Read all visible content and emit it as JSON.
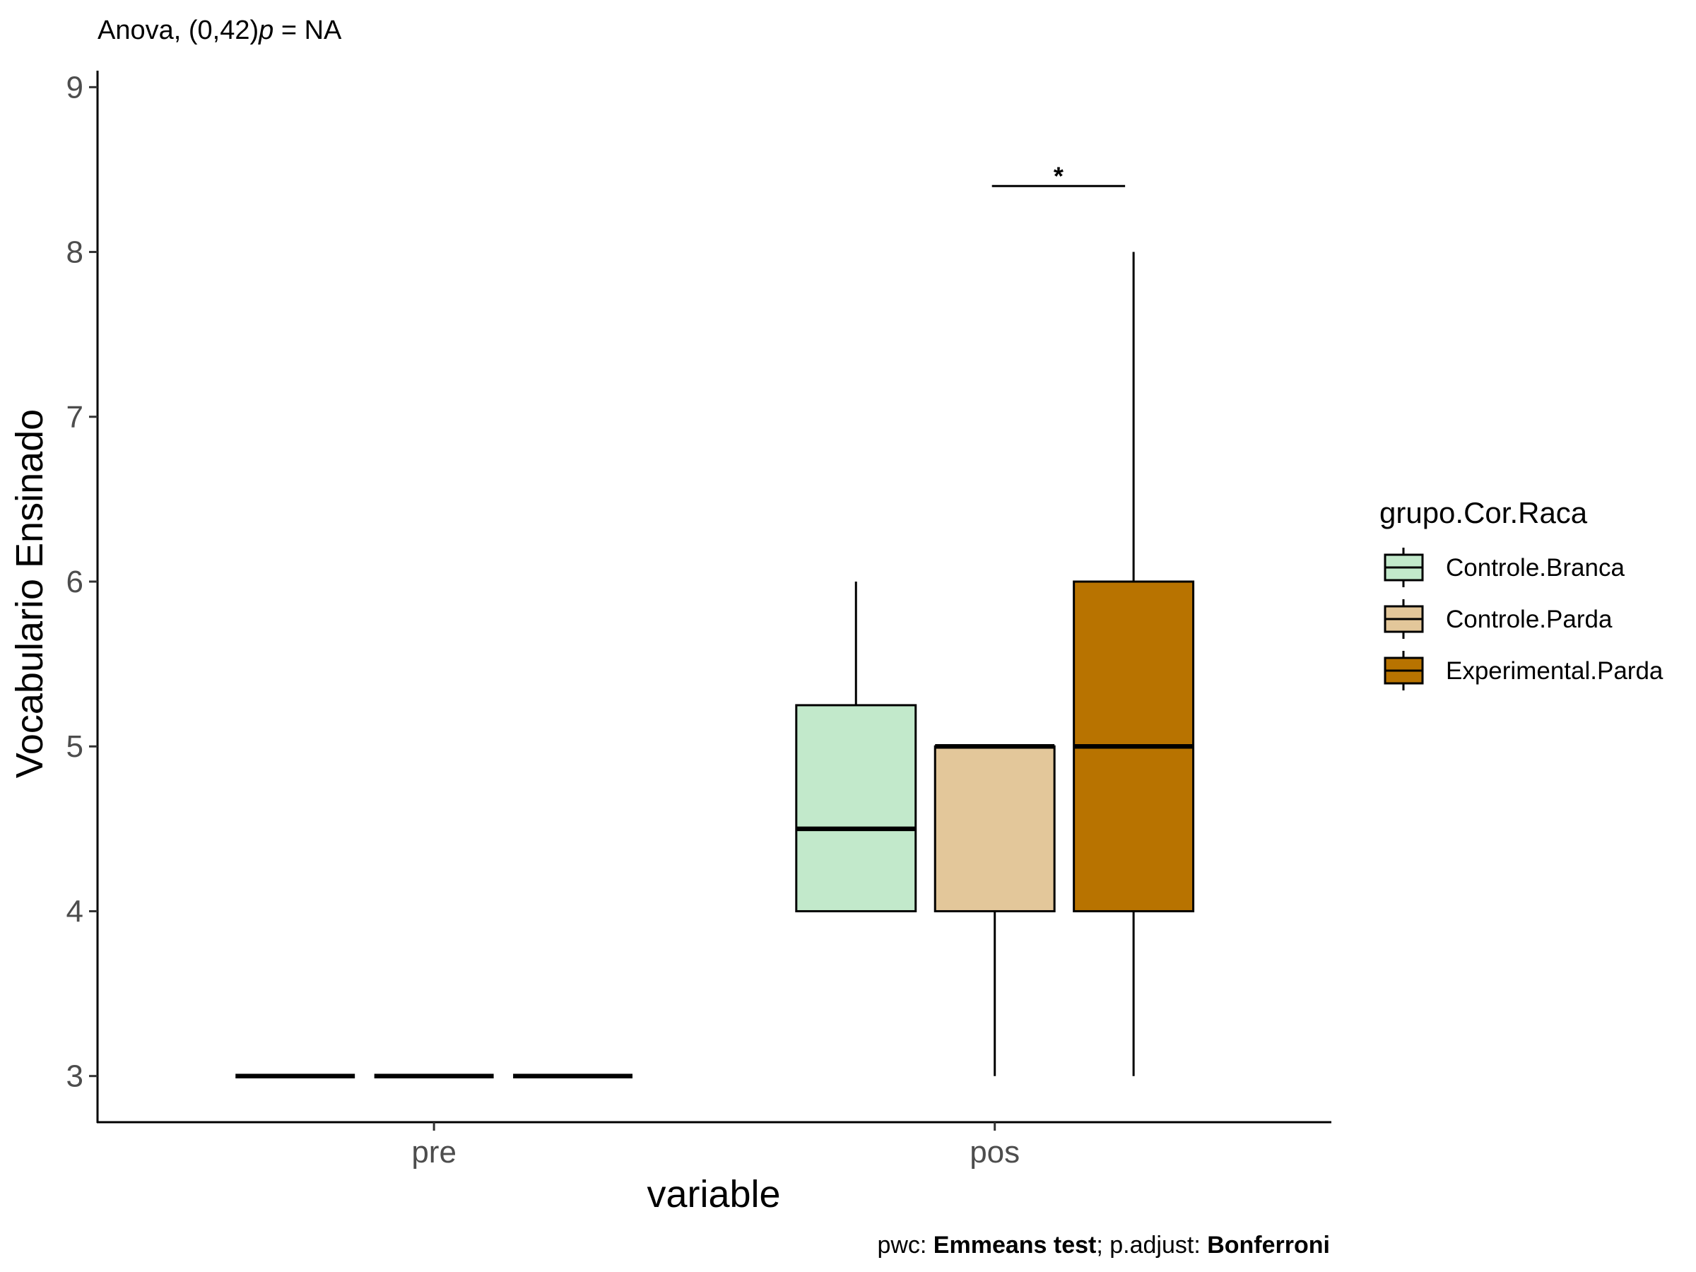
{
  "chart_data": {
    "type": "boxplot",
    "subtitle": {
      "prefix": "Anova, (0,42)",
      "p_symbol": "p",
      "suffix": " = NA"
    },
    "xlabel": "variable",
    "ylabel": "Vocabulario Ensinado",
    "ylim": [
      2.72,
      9.1
    ],
    "yticks": [
      3,
      4,
      5,
      6,
      7,
      8,
      9
    ],
    "categories": [
      "pre",
      "pos"
    ],
    "legend": {
      "title": "grupo.Cor.Raca",
      "placement": "right"
    },
    "series": [
      {
        "name": "Controle.Branca",
        "color": "#c2e9cb",
        "boxes": [
          {
            "category": "pre",
            "min": 3,
            "q1": 3,
            "median": 3,
            "q3": 3,
            "max": 3
          },
          {
            "category": "pos",
            "min": 4,
            "q1": 4,
            "median": 4.5,
            "q3": 5.25,
            "max": 6
          }
        ]
      },
      {
        "name": "Controle.Parda",
        "color": "#e3c79a",
        "boxes": [
          {
            "category": "pre",
            "min": 3,
            "q1": 3,
            "median": 3,
            "q3": 3,
            "max": 3
          },
          {
            "category": "pos",
            "min": 3,
            "q1": 4,
            "median": 5,
            "q3": 5,
            "max": 5
          }
        ]
      },
      {
        "name": "Experimental.Parda",
        "color": "#b87300",
        "boxes": [
          {
            "category": "pre",
            "min": 3,
            "q1": 3,
            "median": 3,
            "q3": 3,
            "max": 3
          },
          {
            "category": "pos",
            "min": 3,
            "q1": 4,
            "median": 5,
            "q3": 6,
            "max": 8
          }
        ]
      }
    ],
    "significance": [
      {
        "category": "pos",
        "from_series": 1,
        "to_series": 2,
        "y": 8.4,
        "label": "*"
      }
    ],
    "caption": {
      "pwc_label": "pwc: ",
      "pwc_value": "Emmeans test",
      "sep": "; p.adjust: ",
      "adjust_value": "Bonferroni"
    },
    "grid": false
  }
}
